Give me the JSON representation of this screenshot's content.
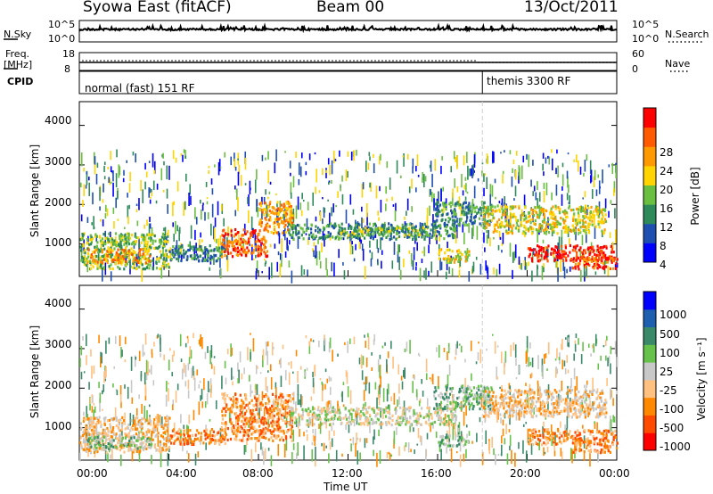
{
  "header": {
    "station": "Syowa East (fitACF)",
    "beam": "Beam 00",
    "date": "13/Oct/2011"
  },
  "top_panels": {
    "nsky_label": "N.Sky",
    "nsky_ticks": [
      "10^5",
      "10^0"
    ],
    "nsearch_label": "N.Search",
    "nsearch_ticks": [
      "10^5",
      "10^0"
    ],
    "freq_label_1": "Freq.",
    "freq_label_2": "[MHz]",
    "freq_ticks": [
      "18",
      "8"
    ],
    "nave_label": "Nave",
    "nave_ticks": [
      "60",
      "0"
    ],
    "cpid_label": "CPID",
    "cpid_segments": [
      {
        "label": "normal (fast) 151 RF",
        "start_hour": 0
      },
      {
        "label": "themis 3300 RF",
        "start_hour": 18
      }
    ]
  },
  "chart_data": [
    {
      "type": "heatmap",
      "name": "power",
      "ylabel": "Slant Range [km]",
      "xlabel": "",
      "x_hours": [
        0,
        4,
        8,
        12,
        16,
        20,
        24
      ],
      "ylim": [
        180,
        4600
      ],
      "y_ticks": [
        1000,
        2000,
        3000,
        4000
      ],
      "colorbar": {
        "label": "Power [dB]",
        "ticks": [
          "28",
          "24",
          "20",
          "16",
          "12",
          "8",
          "4"
        ],
        "colors": [
          "#0000ff",
          "#1e4fb0",
          "#2f8a5a",
          "#6abf40",
          "#ffd400",
          "#ff9900",
          "#ff5a00",
          "#ff0000"
        ]
      },
      "regions": [
        {
          "t0": 0.0,
          "t1": 4.0,
          "r0": 400,
          "r1": 1300,
          "level": 3
        },
        {
          "t0": 0.3,
          "t1": 3.2,
          "r0": 550,
          "r1": 900,
          "level": 5
        },
        {
          "t0": 4.0,
          "t1": 6.5,
          "r0": 600,
          "r1": 1000,
          "level": 2
        },
        {
          "t0": 6.3,
          "t1": 8.4,
          "r0": 700,
          "r1": 1400,
          "level": 6
        },
        {
          "t0": 8.0,
          "t1": 9.5,
          "r0": 1300,
          "r1": 2100,
          "level": 5
        },
        {
          "t0": 9.3,
          "t1": 16.8,
          "r0": 1150,
          "r1": 1550,
          "level": 2
        },
        {
          "t0": 11.5,
          "t1": 15.5,
          "r0": 1250,
          "r1": 1450,
          "level": 3
        },
        {
          "t0": 15.8,
          "t1": 18.4,
          "r0": 1500,
          "r1": 2100,
          "level": 2
        },
        {
          "t0": 16.0,
          "t1": 17.4,
          "r0": 550,
          "r1": 900,
          "level": 4
        },
        {
          "t0": 18.0,
          "t1": 23.5,
          "r0": 1300,
          "r1": 2000,
          "level": 4
        },
        {
          "t0": 20.0,
          "t1": 24.0,
          "r0": 600,
          "r1": 1000,
          "level": 7
        },
        {
          "t0": 22.0,
          "t1": 24.0,
          "r0": 400,
          "r1": 750,
          "level": 6
        }
      ]
    },
    {
      "type": "heatmap",
      "name": "velocity",
      "ylabel": "Slant Range [km]",
      "xlabel": "Time UT",
      "x_ticks": [
        "00:00",
        "04:00",
        "08:00",
        "12:00",
        "16:00",
        "20:00",
        "00:00"
      ],
      "ylim": [
        180,
        4600
      ],
      "y_ticks": [
        1000,
        2000,
        3000,
        4000
      ],
      "colorbar": {
        "label": "Velocity [m s⁻¹]",
        "ticks": [
          "1000",
          "500",
          "100",
          "25",
          "-25",
          "-100",
          "-500",
          "-1000"
        ],
        "colors": [
          "#ff0000",
          "#ff4a00",
          "#ff8800",
          "#ffc080",
          "#c8c8c8",
          "#66c24a",
          "#3a8a6a",
          "#1e5fb0",
          "#0000ff"
        ]
      },
      "regions": [
        {
          "t0": 0.0,
          "t1": 4.0,
          "r0": 400,
          "r1": 1300,
          "level": 3
        },
        {
          "t0": 0.3,
          "t1": 3.2,
          "r0": 500,
          "r1": 800,
          "level": 5
        },
        {
          "t0": 4.0,
          "t1": 6.5,
          "r0": 600,
          "r1": 1000,
          "level": 2
        },
        {
          "t0": 6.3,
          "t1": 9.5,
          "r0": 700,
          "r1": 1900,
          "level": 2
        },
        {
          "t0": 9.3,
          "t1": 16.8,
          "r0": 1100,
          "r1": 1550,
          "level": 4
        },
        {
          "t0": 15.8,
          "t1": 18.4,
          "r0": 1500,
          "r1": 2100,
          "level": 5
        },
        {
          "t0": 16.0,
          "t1": 17.4,
          "r0": 550,
          "r1": 850,
          "level": 5
        },
        {
          "t0": 18.0,
          "t1": 23.5,
          "r0": 1300,
          "r1": 2000,
          "level": 3
        },
        {
          "t0": 20.0,
          "t1": 24.0,
          "r0": 600,
          "r1": 1000,
          "level": 2
        },
        {
          "t0": 22.0,
          "t1": 24.0,
          "r0": 400,
          "r1": 750,
          "level": 2
        }
      ]
    }
  ]
}
